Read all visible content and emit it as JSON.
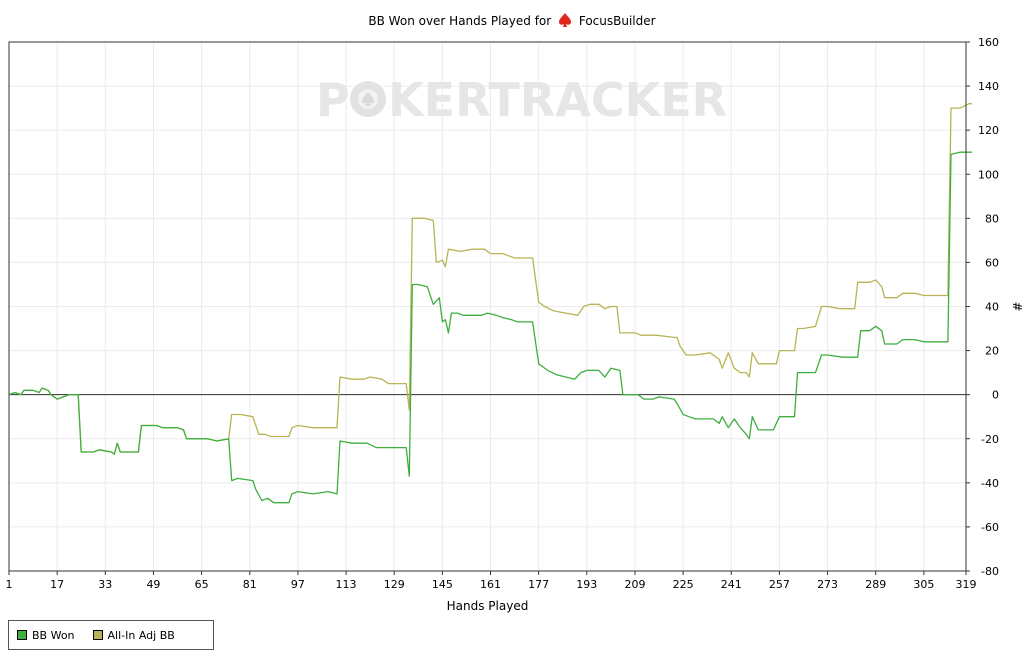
{
  "title_prefix": "BB Won over Hands Played for",
  "player": "FocusBuilder",
  "watermark_left": "P",
  "watermark_right": "KERTRACKER",
  "chart_data": {
    "type": "line",
    "title": "BB Won over Hands Played for FocusBuilder",
    "xlabel": "Hands Played",
    "ylabel": "#",
    "xlim": [
      1,
      319
    ],
    "ylim": [
      -80,
      160
    ],
    "x_ticks": [
      1,
      17,
      33,
      49,
      65,
      81,
      97,
      113,
      129,
      145,
      161,
      177,
      193,
      209,
      225,
      241,
      257,
      273,
      289,
      305,
      319
    ],
    "y_ticks": [
      -80,
      -60,
      -40,
      -20,
      0,
      20,
      40,
      60,
      80,
      100,
      120,
      140,
      160
    ],
    "grid": true,
    "legend": "bottom-left",
    "series": [
      {
        "name": "BB Won",
        "color": "#3fae3f",
        "points": [
          [
            1,
            0
          ],
          [
            3,
            1
          ],
          [
            5,
            0
          ],
          [
            6,
            2
          ],
          [
            9,
            2
          ],
          [
            11,
            1
          ],
          [
            12,
            3
          ],
          [
            14,
            2
          ],
          [
            15,
            0
          ],
          [
            17,
            -2
          ],
          [
            19,
            -1
          ],
          [
            21,
            0
          ],
          [
            24,
            0
          ],
          [
            25,
            -26
          ],
          [
            29,
            -26
          ],
          [
            31,
            -25
          ],
          [
            35,
            -26
          ],
          [
            36,
            -27
          ],
          [
            37,
            -22
          ],
          [
            38,
            -26
          ],
          [
            44,
            -26
          ],
          [
            45,
            -14
          ],
          [
            50,
            -14
          ],
          [
            52,
            -15
          ],
          [
            57,
            -15
          ],
          [
            59,
            -16
          ],
          [
            60,
            -20
          ],
          [
            65,
            -20
          ],
          [
            67,
            -20
          ],
          [
            70,
            -21
          ],
          [
            74,
            -20
          ],
          [
            75,
            -39
          ],
          [
            77,
            -38
          ],
          [
            82,
            -39
          ],
          [
            83,
            -43
          ],
          [
            85,
            -48
          ],
          [
            87,
            -47
          ],
          [
            89,
            -49
          ],
          [
            94,
            -49
          ],
          [
            95,
            -45
          ],
          [
            97,
            -44
          ],
          [
            102,
            -45
          ],
          [
            107,
            -44
          ],
          [
            110,
            -45
          ],
          [
            111,
            -21
          ],
          [
            115,
            -22
          ],
          [
            120,
            -22
          ],
          [
            123,
            -24
          ],
          [
            133,
            -24
          ],
          [
            134,
            -37
          ],
          [
            135,
            50
          ],
          [
            137,
            50
          ],
          [
            140,
            49
          ],
          [
            142,
            41
          ],
          [
            144,
            44
          ],
          [
            145,
            33
          ],
          [
            146,
            34
          ],
          [
            147,
            28
          ],
          [
            148,
            37
          ],
          [
            150,
            37
          ],
          [
            152,
            36
          ],
          [
            158,
            36
          ],
          [
            160,
            37
          ],
          [
            163,
            36
          ],
          [
            165,
            35
          ],
          [
            168,
            34
          ],
          [
            170,
            33
          ],
          [
            175,
            33
          ],
          [
            177,
            14
          ],
          [
            180,
            11
          ],
          [
            183,
            9
          ],
          [
            186,
            8
          ],
          [
            189,
            7
          ],
          [
            191,
            10
          ],
          [
            193,
            11
          ],
          [
            197,
            11
          ],
          [
            199,
            8
          ],
          [
            201,
            12
          ],
          [
            204,
            11
          ],
          [
            205,
            0
          ],
          [
            210,
            0
          ],
          [
            212,
            -2
          ],
          [
            215,
            -2
          ],
          [
            217,
            -1
          ],
          [
            222,
            -2
          ],
          [
            223,
            -4
          ],
          [
            225,
            -9
          ],
          [
            227,
            -10
          ],
          [
            229,
            -11
          ],
          [
            235,
            -11
          ],
          [
            237,
            -13
          ],
          [
            238,
            -10
          ],
          [
            240,
            -15
          ],
          [
            242,
            -11
          ],
          [
            244,
            -15
          ],
          [
            246,
            -18
          ],
          [
            247,
            -20
          ],
          [
            248,
            -10
          ],
          [
            250,
            -16
          ],
          [
            255,
            -16
          ],
          [
            257,
            -10
          ],
          [
            262,
            -10
          ],
          [
            263,
            10
          ],
          [
            265,
            10
          ],
          [
            269,
            10
          ],
          [
            271,
            18
          ],
          [
            273,
            18
          ],
          [
            278,
            17
          ],
          [
            283,
            17
          ],
          [
            284,
            29
          ],
          [
            287,
            29
          ],
          [
            289,
            31
          ],
          [
            291,
            29
          ],
          [
            292,
            23
          ],
          [
            296,
            23
          ],
          [
            298,
            25
          ],
          [
            302,
            25
          ],
          [
            305,
            24
          ],
          [
            313,
            24
          ],
          [
            314,
            109
          ],
          [
            317,
            110
          ],
          [
            322,
            110
          ]
        ]
      },
      {
        "name": "All-In Adj BB",
        "color": "#b8b456",
        "points": [
          [
            1,
            0
          ],
          [
            3,
            1
          ],
          [
            5,
            0
          ],
          [
            6,
            2
          ],
          [
            9,
            2
          ],
          [
            11,
            1
          ],
          [
            12,
            3
          ],
          [
            14,
            2
          ],
          [
            15,
            0
          ],
          [
            17,
            -2
          ],
          [
            19,
            -1
          ],
          [
            21,
            0
          ],
          [
            24,
            0
          ],
          [
            25,
            -26
          ],
          [
            29,
            -26
          ],
          [
            31,
            -25
          ],
          [
            35,
            -26
          ],
          [
            36,
            -27
          ],
          [
            37,
            -22
          ],
          [
            38,
            -26
          ],
          [
            44,
            -26
          ],
          [
            45,
            -14
          ],
          [
            50,
            -14
          ],
          [
            52,
            -15
          ],
          [
            57,
            -15
          ],
          [
            59,
            -16
          ],
          [
            60,
            -20
          ],
          [
            65,
            -20
          ],
          [
            67,
            -20
          ],
          [
            70,
            -21
          ],
          [
            74,
            -20
          ],
          [
            75,
            -9
          ],
          [
            78,
            -9
          ],
          [
            82,
            -10
          ],
          [
            84,
            -18
          ],
          [
            86,
            -18
          ],
          [
            88,
            -19
          ],
          [
            94,
            -19
          ],
          [
            95,
            -15
          ],
          [
            97,
            -14
          ],
          [
            102,
            -15
          ],
          [
            110,
            -15
          ],
          [
            111,
            8
          ],
          [
            115,
            7
          ],
          [
            119,
            7
          ],
          [
            121,
            8
          ],
          [
            125,
            7
          ],
          [
            127,
            5
          ],
          [
            133,
            5
          ],
          [
            134,
            -7
          ],
          [
            135,
            80
          ],
          [
            139,
            80
          ],
          [
            142,
            79
          ],
          [
            143,
            60
          ],
          [
            145,
            61
          ],
          [
            146,
            58
          ],
          [
            147,
            66
          ],
          [
            151,
            65
          ],
          [
            155,
            66
          ],
          [
            159,
            66
          ],
          [
            161,
            64
          ],
          [
            165,
            64
          ],
          [
            167,
            63
          ],
          [
            169,
            62
          ],
          [
            175,
            62
          ],
          [
            177,
            42
          ],
          [
            179,
            40
          ],
          [
            182,
            38
          ],
          [
            186,
            37
          ],
          [
            190,
            36
          ],
          [
            192,
            40
          ],
          [
            194,
            41
          ],
          [
            197,
            41
          ],
          [
            199,
            39
          ],
          [
            201,
            40
          ],
          [
            203,
            40
          ],
          [
            204,
            28
          ],
          [
            209,
            28
          ],
          [
            211,
            27
          ],
          [
            216,
            27
          ],
          [
            222,
            26
          ],
          [
            223,
            26
          ],
          [
            224,
            22
          ],
          [
            226,
            18
          ],
          [
            229,
            18
          ],
          [
            234,
            19
          ],
          [
            237,
            16
          ],
          [
            238,
            12
          ],
          [
            240,
            19
          ],
          [
            242,
            12
          ],
          [
            244,
            10
          ],
          [
            246,
            10
          ],
          [
            247,
            8
          ],
          [
            248,
            19
          ],
          [
            250,
            14
          ],
          [
            256,
            14
          ],
          [
            257,
            20
          ],
          [
            262,
            20
          ],
          [
            263,
            30
          ],
          [
            265,
            30
          ],
          [
            269,
            31
          ],
          [
            271,
            40
          ],
          [
            273,
            40
          ],
          [
            277,
            39
          ],
          [
            282,
            39
          ],
          [
            283,
            51
          ],
          [
            287,
            51
          ],
          [
            289,
            52
          ],
          [
            291,
            49
          ],
          [
            292,
            44
          ],
          [
            296,
            44
          ],
          [
            298,
            46
          ],
          [
            302,
            46
          ],
          [
            305,
            45
          ],
          [
            313,
            45
          ],
          [
            314,
            130
          ],
          [
            317,
            130
          ],
          [
            320,
            132
          ],
          [
            322,
            132
          ]
        ]
      }
    ]
  },
  "legend_items": [
    "BB Won",
    "All-In Adj BB"
  ]
}
